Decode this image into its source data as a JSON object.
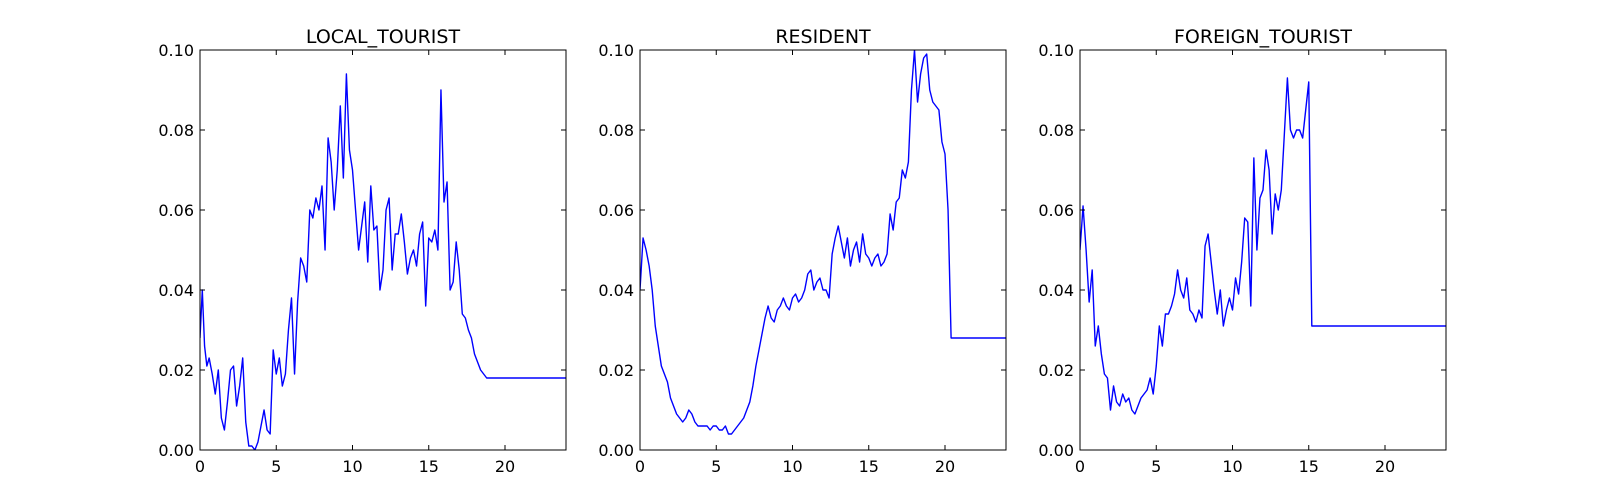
{
  "figure": {
    "background": "#ffffff",
    "line_color": "#0000ff"
  },
  "chart_data": [
    {
      "type": "line",
      "title": "LOCAL_TOURIST",
      "xlabel": "",
      "ylabel": "",
      "xlim": [
        0,
        24
      ],
      "ylim": [
        0,
        0.1
      ],
      "xticks": [
        0,
        5,
        10,
        15,
        20
      ],
      "xtick_labels": [
        "0",
        "5",
        "10",
        "15",
        "20"
      ],
      "yticks": [
        0,
        0.02,
        0.04,
        0.06,
        0.08,
        0.1
      ],
      "ytick_labels": [
        "0.00",
        "0.02",
        "0.04",
        "0.06",
        "0.08",
        "0.10"
      ],
      "grid": false,
      "series": [
        {
          "color": "#0000ff",
          "x": [
            0.0,
            0.15,
            0.3,
            0.45,
            0.6,
            0.8,
            1.0,
            1.2,
            1.4,
            1.6,
            1.8,
            2.0,
            2.2,
            2.4,
            2.6,
            2.8,
            3.0,
            3.2,
            3.4,
            3.6,
            3.8,
            4.0,
            4.2,
            4.4,
            4.6,
            4.8,
            5.0,
            5.2,
            5.4,
            5.6,
            5.8,
            6.0,
            6.2,
            6.4,
            6.6,
            6.8,
            7.0,
            7.2,
            7.4,
            7.6,
            7.8,
            8.0,
            8.2,
            8.4,
            8.6,
            8.8,
            9.0,
            9.2,
            9.4,
            9.6,
            9.8,
            10.0,
            10.2,
            10.4,
            10.6,
            10.8,
            11.0,
            11.2,
            11.4,
            11.6,
            11.8,
            12.0,
            12.2,
            12.4,
            12.6,
            12.8,
            13.0,
            13.2,
            13.4,
            13.6,
            13.8,
            14.0,
            14.2,
            14.4,
            14.6,
            14.8,
            15.0,
            15.2,
            15.4,
            15.6,
            15.8,
            16.0,
            16.2,
            16.4,
            16.6,
            16.8,
            17.0,
            17.2,
            17.4,
            17.6,
            17.8,
            18.0,
            18.2,
            18.4,
            18.6,
            18.8,
            19.0,
            19.2,
            19.4,
            19.6,
            19.8,
            20.0,
            20.2,
            20.4,
            20.6,
            20.8,
            21.0,
            21.2,
            21.4,
            21.6,
            21.8,
            22.0,
            22.2,
            22.4,
            22.6,
            22.8,
            23.0,
            23.2,
            23.4,
            23.6,
            23.8,
            24.0
          ],
          "y": [
            0.028,
            0.04,
            0.026,
            0.021,
            0.023,
            0.019,
            0.014,
            0.02,
            0.008,
            0.005,
            0.012,
            0.02,
            0.021,
            0.011,
            0.016,
            0.023,
            0.007,
            0.001,
            0.001,
            0.0,
            0.002,
            0.006,
            0.01,
            0.005,
            0.004,
            0.025,
            0.019,
            0.023,
            0.016,
            0.019,
            0.03,
            0.038,
            0.019,
            0.037,
            0.048,
            0.046,
            0.042,
            0.06,
            0.058,
            0.063,
            0.06,
            0.066,
            0.05,
            0.078,
            0.072,
            0.06,
            0.07,
            0.086,
            0.068,
            0.094,
            0.075,
            0.07,
            0.06,
            0.05,
            0.056,
            0.062,
            0.047,
            0.066,
            0.055,
            0.056,
            0.04,
            0.045,
            0.06,
            0.063,
            0.045,
            0.054,
            0.054,
            0.059,
            0.052,
            0.044,
            0.048,
            0.05,
            0.046,
            0.054,
            0.057,
            0.036,
            0.053,
            0.052,
            0.055,
            0.05,
            0.09,
            0.062,
            0.067,
            0.04,
            0.042,
            0.052,
            0.045,
            0.034,
            0.033,
            0.03,
            0.028,
            0.024,
            0.022,
            0.02,
            0.019,
            0.018,
            0.018,
            0.018,
            0.018,
            0.018,
            0.018,
            0.018,
            0.018,
            0.018,
            0.018,
            0.018,
            0.018,
            0.018,
            0.018,
            0.018,
            0.018,
            0.018,
            0.018,
            0.018,
            0.018,
            0.018,
            0.018,
            0.018,
            0.018,
            0.018,
            0.018,
            0.018
          ]
        }
      ]
    },
    {
      "type": "line",
      "title": "RESIDENT",
      "xlabel": "",
      "ylabel": "",
      "xlim": [
        0,
        24
      ],
      "ylim": [
        0,
        0.1
      ],
      "xticks": [
        0,
        5,
        10,
        15,
        20
      ],
      "xtick_labels": [
        "0",
        "5",
        "10",
        "15",
        "20"
      ],
      "yticks": [
        0,
        0.02,
        0.04,
        0.06,
        0.08,
        0.1
      ],
      "ytick_labels": [
        "0.00",
        "0.02",
        "0.04",
        "0.06",
        "0.08",
        "0.10"
      ],
      "grid": false,
      "series": [
        {
          "color": "#0000ff",
          "x": [
            0.0,
            0.2,
            0.4,
            0.6,
            0.8,
            1.0,
            1.2,
            1.4,
            1.6,
            1.8,
            2.0,
            2.2,
            2.4,
            2.6,
            2.8,
            3.0,
            3.2,
            3.4,
            3.6,
            3.8,
            4.0,
            4.2,
            4.4,
            4.6,
            4.8,
            5.0,
            5.2,
            5.4,
            5.6,
            5.8,
            6.0,
            6.2,
            6.4,
            6.6,
            6.8,
            7.0,
            7.2,
            7.4,
            7.6,
            7.8,
            8.0,
            8.2,
            8.4,
            8.6,
            8.8,
            9.0,
            9.2,
            9.4,
            9.6,
            9.8,
            10.0,
            10.2,
            10.4,
            10.6,
            10.8,
            11.0,
            11.2,
            11.4,
            11.6,
            11.8,
            12.0,
            12.2,
            12.4,
            12.6,
            12.8,
            13.0,
            13.2,
            13.4,
            13.6,
            13.8,
            14.0,
            14.2,
            14.4,
            14.6,
            14.8,
            15.0,
            15.2,
            15.4,
            15.6,
            15.8,
            16.0,
            16.2,
            16.4,
            16.6,
            16.8,
            17.0,
            17.2,
            17.4,
            17.6,
            17.8,
            18.0,
            18.2,
            18.4,
            18.6,
            18.8,
            19.0,
            19.2,
            19.4,
            19.6,
            19.8,
            20.0,
            20.2,
            20.4,
            20.6,
            20.8,
            21.0,
            21.2,
            21.4,
            21.6,
            21.8,
            22.0,
            22.2,
            22.4,
            22.6,
            22.8,
            23.0,
            23.2,
            23.4,
            23.6,
            23.8,
            24.0
          ],
          "y": [
            0.04,
            0.053,
            0.05,
            0.046,
            0.04,
            0.031,
            0.026,
            0.021,
            0.019,
            0.017,
            0.013,
            0.011,
            0.009,
            0.008,
            0.007,
            0.008,
            0.01,
            0.009,
            0.007,
            0.006,
            0.006,
            0.006,
            0.006,
            0.005,
            0.006,
            0.006,
            0.005,
            0.005,
            0.006,
            0.004,
            0.004,
            0.005,
            0.006,
            0.007,
            0.008,
            0.01,
            0.012,
            0.016,
            0.021,
            0.025,
            0.029,
            0.033,
            0.036,
            0.033,
            0.032,
            0.035,
            0.036,
            0.038,
            0.036,
            0.035,
            0.038,
            0.039,
            0.037,
            0.038,
            0.04,
            0.044,
            0.045,
            0.04,
            0.042,
            0.043,
            0.04,
            0.04,
            0.038,
            0.049,
            0.053,
            0.056,
            0.052,
            0.048,
            0.053,
            0.046,
            0.05,
            0.052,
            0.047,
            0.054,
            0.049,
            0.048,
            0.046,
            0.048,
            0.049,
            0.046,
            0.047,
            0.049,
            0.059,
            0.055,
            0.062,
            0.063,
            0.07,
            0.068,
            0.072,
            0.09,
            0.1,
            0.087,
            0.094,
            0.098,
            0.099,
            0.09,
            0.087,
            0.086,
            0.085,
            0.077,
            0.074,
            0.06,
            0.028,
            0.028,
            0.028,
            0.028,
            0.028,
            0.028,
            0.028,
            0.028,
            0.028,
            0.028,
            0.028,
            0.028,
            0.028,
            0.028,
            0.028,
            0.028,
            0.028,
            0.028,
            0.028
          ]
        }
      ]
    },
    {
      "type": "line",
      "title": "FOREIGN_TOURIST",
      "xlabel": "",
      "ylabel": "",
      "xlim": [
        0,
        24
      ],
      "ylim": [
        0,
        0.1
      ],
      "xticks": [
        0,
        5,
        10,
        15,
        20
      ],
      "xtick_labels": [
        "0",
        "5",
        "10",
        "15",
        "20"
      ],
      "yticks": [
        0,
        0.02,
        0.04,
        0.06,
        0.08,
        0.1
      ],
      "ytick_labels": [
        "0.00",
        "0.02",
        "0.04",
        "0.06",
        "0.08",
        "0.10"
      ],
      "grid": false,
      "series": [
        {
          "color": "#0000ff",
          "x": [
            0.0,
            0.2,
            0.4,
            0.6,
            0.8,
            1.0,
            1.2,
            1.4,
            1.6,
            1.8,
            2.0,
            2.2,
            2.4,
            2.6,
            2.8,
            3.0,
            3.2,
            3.4,
            3.6,
            3.8,
            4.0,
            4.2,
            4.4,
            4.6,
            4.8,
            5.0,
            5.2,
            5.4,
            5.6,
            5.8,
            6.0,
            6.2,
            6.4,
            6.6,
            6.8,
            7.0,
            7.2,
            7.4,
            7.6,
            7.8,
            8.0,
            8.2,
            8.4,
            8.6,
            8.8,
            9.0,
            9.2,
            9.4,
            9.6,
            9.8,
            10.0,
            10.2,
            10.4,
            10.6,
            10.8,
            11.0,
            11.2,
            11.4,
            11.6,
            11.8,
            12.0,
            12.2,
            12.4,
            12.6,
            12.8,
            13.0,
            13.2,
            13.4,
            13.6,
            13.8,
            14.0,
            14.2,
            14.4,
            14.6,
            14.8,
            15.0,
            15.2,
            15.4,
            15.6,
            15.8,
            16.0,
            16.2,
            16.4,
            16.6,
            16.8,
            17.0,
            17.2,
            17.4,
            17.6,
            17.8,
            18.0,
            18.2,
            18.4,
            18.6,
            18.8,
            19.0,
            19.2,
            19.4,
            19.6,
            19.8,
            20.0,
            20.2,
            20.4,
            20.6,
            20.8,
            21.0,
            21.2,
            21.4,
            21.6,
            21.8,
            22.0,
            22.2,
            22.4,
            22.6,
            22.8,
            23.0,
            23.2,
            23.4,
            23.6,
            23.8,
            24.0
          ],
          "y": [
            0.05,
            0.061,
            0.05,
            0.037,
            0.045,
            0.026,
            0.031,
            0.024,
            0.019,
            0.018,
            0.01,
            0.016,
            0.012,
            0.011,
            0.014,
            0.012,
            0.013,
            0.01,
            0.009,
            0.011,
            0.013,
            0.014,
            0.015,
            0.018,
            0.014,
            0.021,
            0.031,
            0.026,
            0.034,
            0.034,
            0.036,
            0.039,
            0.045,
            0.04,
            0.038,
            0.043,
            0.035,
            0.034,
            0.032,
            0.035,
            0.033,
            0.051,
            0.054,
            0.047,
            0.04,
            0.034,
            0.04,
            0.031,
            0.035,
            0.038,
            0.035,
            0.043,
            0.039,
            0.047,
            0.058,
            0.057,
            0.036,
            0.073,
            0.05,
            0.063,
            0.065,
            0.075,
            0.07,
            0.054,
            0.064,
            0.06,
            0.065,
            0.079,
            0.093,
            0.08,
            0.078,
            0.08,
            0.08,
            0.078,
            0.085,
            0.092,
            0.031,
            0.031,
            0.031,
            0.031,
            0.031,
            0.031,
            0.031,
            0.031,
            0.031,
            0.031,
            0.031,
            0.031,
            0.031,
            0.031,
            0.031,
            0.031,
            0.031,
            0.031,
            0.031,
            0.031,
            0.031,
            0.031,
            0.031,
            0.031,
            0.031,
            0.031,
            0.031,
            0.031,
            0.031,
            0.031,
            0.031,
            0.031,
            0.031,
            0.031,
            0.031,
            0.031,
            0.031,
            0.031,
            0.031,
            0.031,
            0.031,
            0.031,
            0.031,
            0.031,
            0.031
          ]
        }
      ]
    }
  ]
}
